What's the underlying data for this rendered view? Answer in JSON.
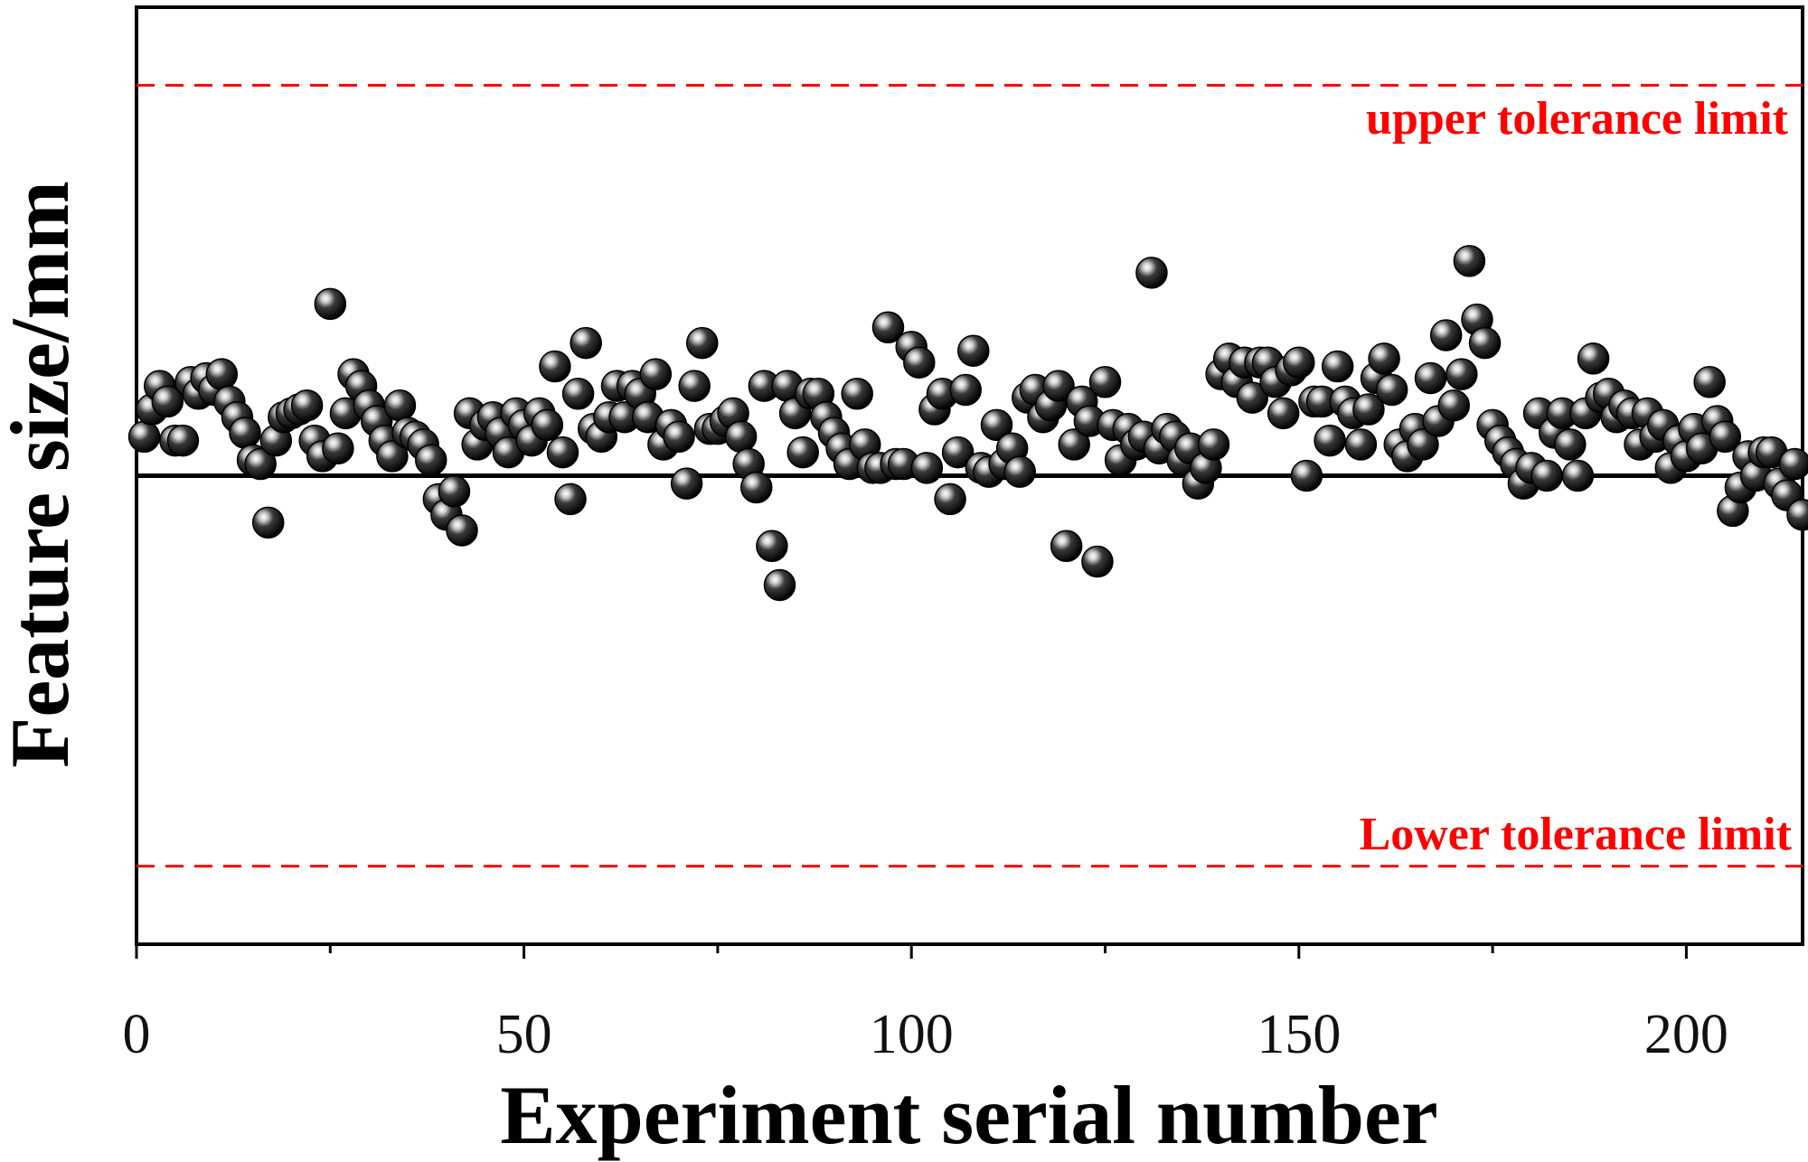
{
  "chart_data": {
    "type": "scatter",
    "xlabel": "Experiment serial number",
    "ylabel": "Feature size/mm",
    "xlim": [
      0,
      215
    ],
    "ylim": [
      -1.2,
      1.2
    ],
    "xticks": [
      0,
      50,
      100,
      150,
      200
    ],
    "grid": false,
    "reference_lines": [
      {
        "name": "upper tolerance limit",
        "y": 1.0,
        "style": "dashed",
        "color": "#ff0000"
      },
      {
        "name": "Lower tolerance limit",
        "y": -1.0,
        "style": "dashed",
        "color": "#ff0000"
      },
      {
        "name": "",
        "y": 0.0,
        "style": "solid",
        "color": "#000000"
      }
    ],
    "marker_color": "#111111",
    "series": [
      {
        "points": [
          [
            1,
            0.1
          ],
          [
            2,
            0.17
          ],
          [
            3,
            0.23
          ],
          [
            4,
            0.19
          ],
          [
            5,
            0.09
          ],
          [
            6,
            0.09
          ],
          [
            7,
            0.24
          ],
          [
            8,
            0.21
          ],
          [
            9,
            0.25
          ],
          [
            10,
            0.22
          ],
          [
            11,
            0.26
          ],
          [
            12,
            0.19
          ],
          [
            13,
            0.15
          ],
          [
            14,
            0.11
          ],
          [
            15,
            0.04
          ],
          [
            16,
            0.03
          ],
          [
            17,
            -0.12
          ],
          [
            18,
            0.09
          ],
          [
            19,
            0.15
          ],
          [
            20,
            0.16
          ],
          [
            21,
            0.17
          ],
          [
            22,
            0.18
          ],
          [
            23,
            0.09
          ],
          [
            24,
            0.05
          ],
          [
            25,
            0.44
          ],
          [
            26,
            0.07
          ],
          [
            27,
            0.16
          ],
          [
            28,
            0.26
          ],
          [
            29,
            0.23
          ],
          [
            30,
            0.18
          ],
          [
            31,
            0.14
          ],
          [
            32,
            0.09
          ],
          [
            33,
            0.05
          ],
          [
            34,
            0.18
          ],
          [
            35,
            0.11
          ],
          [
            36,
            0.1
          ],
          [
            37,
            0.08
          ],
          [
            38,
            0.04
          ],
          [
            39,
            -0.06
          ],
          [
            40,
            -0.1
          ],
          [
            41,
            -0.04
          ],
          [
            42,
            -0.14
          ],
          [
            43,
            0.16
          ],
          [
            44,
            0.08
          ],
          [
            45,
            0.13
          ],
          [
            46,
            0.15
          ],
          [
            47,
            0.11
          ],
          [
            48,
            0.06
          ],
          [
            49,
            0.16
          ],
          [
            50,
            0.13
          ],
          [
            51,
            0.09
          ],
          [
            52,
            0.16
          ],
          [
            53,
            0.13
          ],
          [
            54,
            0.28
          ],
          [
            55,
            0.06
          ],
          [
            56,
            -0.06
          ],
          [
            57,
            0.21
          ],
          [
            58,
            0.34
          ],
          [
            59,
            0.12
          ],
          [
            60,
            0.1
          ],
          [
            61,
            0.15
          ],
          [
            62,
            0.23
          ],
          [
            63,
            0.15
          ],
          [
            64,
            0.23
          ],
          [
            65,
            0.21
          ],
          [
            66,
            0.15
          ],
          [
            67,
            0.26
          ],
          [
            68,
            0.08
          ],
          [
            69,
            0.13
          ],
          [
            70,
            0.1
          ],
          [
            71,
            -0.02
          ],
          [
            72,
            0.23
          ],
          [
            73,
            0.34
          ],
          [
            74,
            0.12
          ],
          [
            75,
            0.12
          ],
          [
            76,
            0.14
          ],
          [
            77,
            0.16
          ],
          [
            78,
            0.1
          ],
          [
            79,
            0.03
          ],
          [
            80,
            -0.03
          ],
          [
            81,
            0.23
          ],
          [
            82,
            -0.18
          ],
          [
            83,
            -0.28
          ],
          [
            84,
            0.23
          ],
          [
            85,
            0.16
          ],
          [
            86,
            0.06
          ],
          [
            87,
            0.21
          ],
          [
            88,
            0.21
          ],
          [
            89,
            0.15
          ],
          [
            90,
            0.11
          ],
          [
            91,
            0.07
          ],
          [
            92,
            0.03
          ],
          [
            93,
            0.21
          ],
          [
            94,
            0.08
          ],
          [
            95,
            0.02
          ],
          [
            96,
            0.02
          ],
          [
            97,
            0.38
          ],
          [
            98,
            0.03
          ],
          [
            99,
            0.03
          ],
          [
            100,
            0.33
          ],
          [
            101,
            0.29
          ],
          [
            102,
            0.02
          ],
          [
            103,
            0.17
          ],
          [
            104,
            0.21
          ],
          [
            105,
            -0.06
          ],
          [
            106,
            0.06
          ],
          [
            107,
            0.22
          ],
          [
            108,
            0.32
          ],
          [
            109,
            0.02
          ],
          [
            110,
            0.01
          ],
          [
            111,
            0.13
          ],
          [
            112,
            0.03
          ],
          [
            113,
            0.07
          ],
          [
            114,
            0.01
          ],
          [
            115,
            0.2
          ],
          [
            116,
            0.22
          ],
          [
            117,
            0.15
          ],
          [
            118,
            0.18
          ],
          [
            119,
            0.23
          ],
          [
            120,
            -0.18
          ],
          [
            121,
            0.08
          ],
          [
            122,
            0.19
          ],
          [
            123,
            0.14
          ],
          [
            124,
            -0.22
          ],
          [
            125,
            0.24
          ],
          [
            126,
            0.13
          ],
          [
            127,
            0.04
          ],
          [
            128,
            0.12
          ],
          [
            129,
            0.08
          ],
          [
            130,
            0.1
          ],
          [
            131,
            0.52
          ],
          [
            132,
            0.07
          ],
          [
            133,
            0.12
          ],
          [
            134,
            0.1
          ],
          [
            135,
            0.04
          ],
          [
            136,
            0.07
          ],
          [
            137,
            -0.02
          ],
          [
            138,
            0.02
          ],
          [
            139,
            0.08
          ],
          [
            140,
            0.26
          ],
          [
            141,
            0.3
          ],
          [
            142,
            0.24
          ],
          [
            143,
            0.29
          ],
          [
            144,
            0.2
          ],
          [
            145,
            0.29
          ],
          [
            146,
            0.29
          ],
          [
            147,
            0.24
          ],
          [
            148,
            0.16
          ],
          [
            149,
            0.27
          ],
          [
            150,
            0.29
          ],
          [
            151,
            0.0
          ],
          [
            152,
            0.19
          ],
          [
            153,
            0.19
          ],
          [
            154,
            0.09
          ],
          [
            155,
            0.28
          ],
          [
            156,
            0.19
          ],
          [
            157,
            0.16
          ],
          [
            158,
            0.08
          ],
          [
            159,
            0.17
          ],
          [
            160,
            0.25
          ],
          [
            161,
            0.3
          ],
          [
            162,
            0.22
          ],
          [
            163,
            0.08
          ],
          [
            164,
            0.05
          ],
          [
            165,
            0.12
          ],
          [
            166,
            0.08
          ],
          [
            167,
            0.25
          ],
          [
            168,
            0.14
          ],
          [
            169,
            0.36
          ],
          [
            170,
            0.18
          ],
          [
            171,
            0.26
          ],
          [
            172,
            0.55
          ],
          [
            173,
            0.4
          ],
          [
            174,
            0.34
          ],
          [
            175,
            0.13
          ],
          [
            176,
            0.09
          ],
          [
            177,
            0.06
          ],
          [
            178,
            0.03
          ],
          [
            179,
            -0.02
          ],
          [
            180,
            0.02
          ],
          [
            181,
            0.16
          ],
          [
            182,
            0.0
          ],
          [
            183,
            0.11
          ],
          [
            184,
            0.16
          ],
          [
            185,
            0.08
          ],
          [
            186,
            0.0
          ],
          [
            187,
            0.16
          ],
          [
            188,
            0.3
          ],
          [
            189,
            0.2
          ],
          [
            190,
            0.21
          ],
          [
            191,
            0.15
          ],
          [
            192,
            0.18
          ],
          [
            193,
            0.16
          ],
          [
            194,
            0.08
          ],
          [
            195,
            0.16
          ],
          [
            196,
            0.1
          ],
          [
            197,
            0.13
          ],
          [
            198,
            0.02
          ],
          [
            199,
            0.09
          ],
          [
            200,
            0.05
          ],
          [
            201,
            0.12
          ],
          [
            202,
            0.07
          ],
          [
            203,
            0.24
          ],
          [
            204,
            0.14
          ],
          [
            205,
            0.1
          ],
          [
            206,
            -0.09
          ],
          [
            207,
            -0.03
          ],
          [
            208,
            0.05
          ],
          [
            209,
            0.0
          ],
          [
            210,
            0.06
          ],
          [
            211,
            0.06
          ],
          [
            212,
            -0.02
          ],
          [
            213,
            -0.05
          ],
          [
            214,
            0.03
          ],
          [
            215,
            -0.1
          ]
        ]
      }
    ]
  }
}
